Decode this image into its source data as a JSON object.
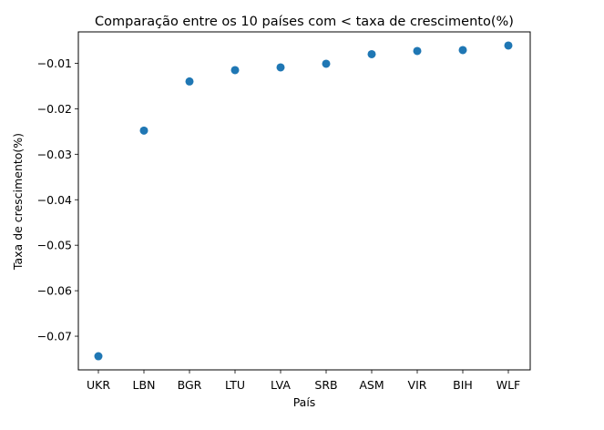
{
  "chart_data": {
    "type": "scatter",
    "title": "Comparação entre os 10 países com < taxa de crescimento(%)",
    "xlabel": "País",
    "ylabel": "Taxa de crescimento(%)",
    "categories": [
      "UKR",
      "LBN",
      "BGR",
      "LTU",
      "LVA",
      "SRB",
      "ASM",
      "VIR",
      "BIH",
      "WLF"
    ],
    "values": [
      -0.0744,
      -0.0248,
      -0.014,
      -0.0115,
      -0.0109,
      -0.0101,
      -0.008,
      -0.0073,
      -0.0071,
      -0.0061
    ],
    "ylim": [
      -0.0774,
      -0.0031
    ],
    "yticks": [
      -0.07,
      -0.06,
      -0.05,
      -0.04,
      -0.03,
      -0.02,
      -0.01
    ],
    "ytick_labels": [
      "−0.07",
      "−0.06",
      "−0.05",
      "−0.04",
      "−0.03",
      "−0.02",
      "−0.01"
    ],
    "marker_color": "#1f77b4",
    "grid": false,
    "legend": false
  }
}
